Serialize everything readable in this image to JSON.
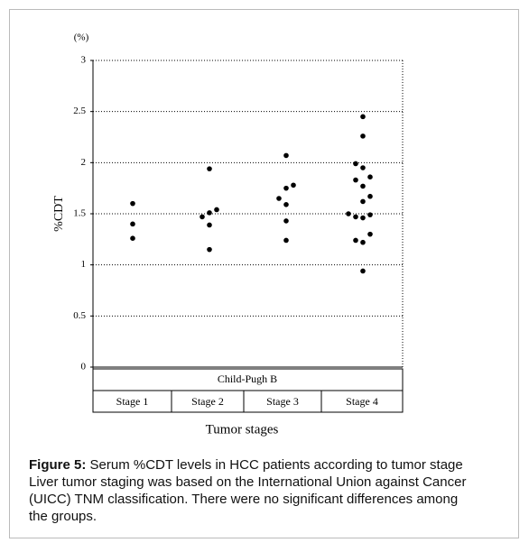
{
  "chart_data": {
    "type": "strip",
    "y_unit": "(%)",
    "ylabel": "%CDT",
    "group": "Child-Pugh B",
    "xlabel": "Tumor stages",
    "categories": [
      "Stage 1",
      "Stage 2",
      "Stage 3",
      "Stage 4"
    ],
    "values": [
      [
        1.6,
        1.4,
        1.26
      ],
      [
        1.94,
        1.54,
        1.47,
        1.51,
        1.39,
        1.15
      ],
      [
        2.07,
        1.78,
        1.75,
        1.65,
        1.59,
        1.43,
        1.24
      ],
      [
        2.45,
        2.26,
        1.99,
        1.95,
        1.86,
        1.83,
        1.77,
        1.67,
        1.62,
        1.5,
        1.49,
        1.47,
        1.46,
        1.3,
        1.24,
        1.22,
        0.94
      ]
    ],
    "color": "#000000",
    "ylim": [
      0,
      3
    ],
    "yticks": [
      0,
      0.5,
      1,
      1.5,
      2,
      2.5,
      3
    ],
    "grid": true
  },
  "caption": {
    "label": "Figure 5:",
    "lines": [
      "Serum %CDT levels in HCC patients according to tumor stage",
      "Liver tumor staging was based on the International Union against Cancer",
      "(UICC) TNM classification. There were no significant differences among",
      "the groups."
    ]
  }
}
